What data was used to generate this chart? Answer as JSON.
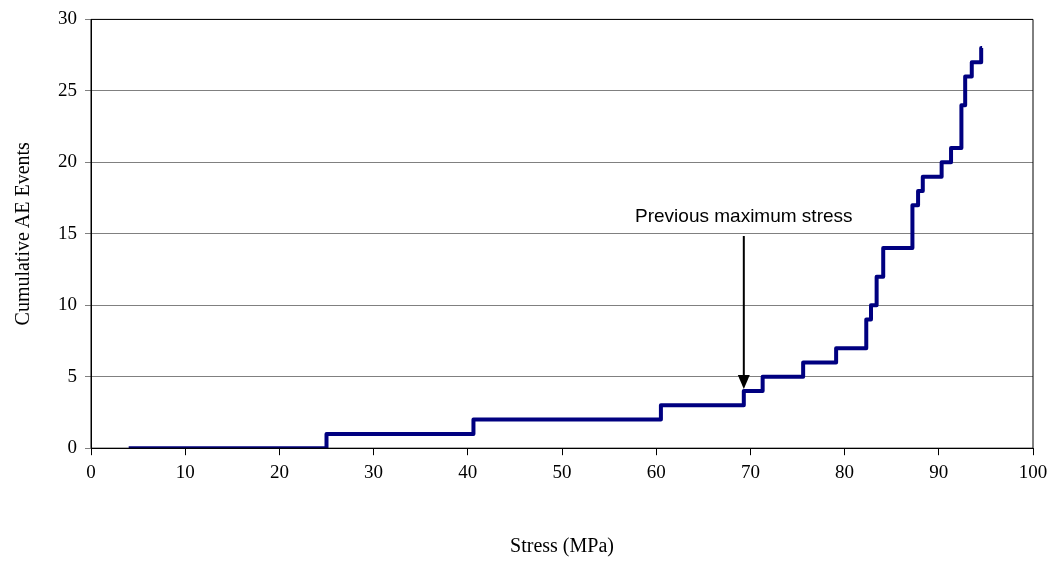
{
  "chart_data": {
    "type": "step",
    "xlabel": "Stress (MPa)",
    "ylabel": "Cumulative AE Events",
    "x": [
      4,
      25,
      40.6,
      60.5,
      69.3,
      71.3,
      75.6,
      79.1,
      82.3,
      82.8,
      83.4,
      84.1,
      87.2,
      87.8,
      88.3,
      90.3,
      91.3,
      92.4,
      92.8,
      93.5,
      94.5,
      94.6
    ],
    "series": [
      {
        "color": "#000080",
        "values": [
          0,
          1,
          2,
          3,
          4,
          5,
          6,
          7,
          9,
          10,
          12,
          14,
          17,
          18,
          19,
          20,
          21,
          24,
          26,
          27,
          28,
          28
        ]
      }
    ],
    "xlim": [
      0,
      100
    ],
    "xticks": [
      0,
      10,
      20,
      30,
      40,
      50,
      60,
      70,
      80,
      90,
      100
    ],
    "ylim": [
      0,
      30
    ],
    "yticks": [
      0,
      5,
      10,
      15,
      20,
      25,
      30
    ],
    "grid": "y",
    "legend": false,
    "annotations": [
      {
        "text": "Previous maximum stress",
        "x": 69.3,
        "y": 4
      }
    ]
  }
}
